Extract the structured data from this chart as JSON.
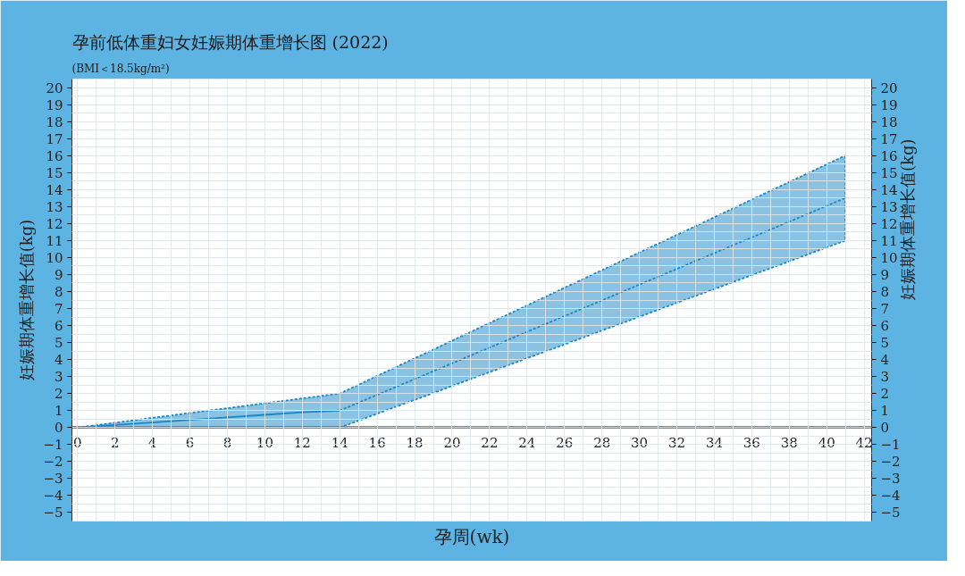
{
  "chart_data": {
    "type": "line",
    "title": "孕前低体重妇女妊娠期体重增长图 (2022)",
    "subtitle": "(BMI＜18.5kg/m²)",
    "xlabel": "孕周(wk)",
    "ylabel": "妊娠期体重增长值(kg)",
    "y2label": "妊娠期体重增长值(kg)",
    "series": [
      {
        "color": "#1a86c4",
        "line_style": "solid",
        "x": [
          0,
          2,
          4,
          6,
          8,
          10,
          12,
          14
        ],
        "values": [
          0,
          0.15,
          0.3,
          0.45,
          0.6,
          0.75,
          0.9,
          1.0
        ],
        "lower": [
          0,
          0,
          0,
          0,
          0,
          0,
          0,
          0
        ],
        "upper": [
          0,
          0.29,
          0.57,
          0.86,
          1.14,
          1.43,
          1.71,
          2.0
        ]
      },
      {
        "color": "#1a86c4",
        "line_style": "dashed",
        "x": [
          14,
          41
        ],
        "values": [
          1.0,
          13.5
        ],
        "lower": [
          0,
          11
        ],
        "upper": [
          2.0,
          16
        ]
      },
      {
        "color": "#1a86c4",
        "line_style": "dashed",
        "x": [
          0,
          14,
          41
        ],
        "values": [
          0,
          2.0,
          16
        ]
      },
      {
        "color": "#1a86c4",
        "line_style": "dashed",
        "x": [
          14,
          41,
          41
        ],
        "values": [
          0,
          11,
          16
        ]
      }
    ],
    "xlim": [
      -0.3,
      42.4
    ],
    "xticks": [
      0,
      2,
      4,
      6,
      8,
      10,
      12,
      14,
      16,
      18,
      20,
      22,
      24,
      26,
      28,
      30,
      32,
      34,
      36,
      38,
      40,
      42
    ],
    "ylim": [
      -5.5,
      20.5
    ],
    "yticks": [
      -5,
      -4,
      -3,
      -2,
      -1,
      0,
      1,
      2,
      3,
      4,
      5,
      6,
      7,
      8,
      9,
      10,
      11,
      12,
      13,
      14,
      15,
      16,
      17,
      18,
      19,
      20
    ],
    "y2lim": [
      -5.5,
      20.5
    ],
    "y2ticks": [
      -5,
      -4,
      -3,
      -2,
      -1,
      0,
      1,
      2,
      3,
      4,
      5,
      6,
      7,
      8,
      9,
      10,
      11,
      12,
      13,
      14,
      15,
      16,
      17,
      18,
      19,
      20
    ],
    "grid": true
  }
}
